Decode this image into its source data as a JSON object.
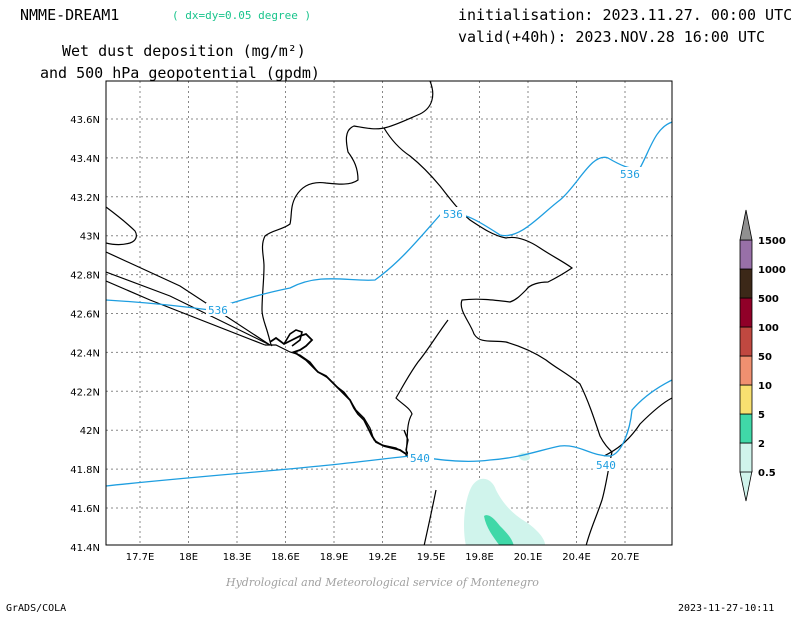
{
  "header": {
    "model": "NMME-DREAM1",
    "resolution": "( dx=dy=0.05 degree )",
    "init": "initialisation: 2023.11.27. 00:00 UTC",
    "valid": "valid(+40h): 2023.NOV.28 16:00 UTC",
    "field_line1": "Wet dust deposition (mg/m²)",
    "field_line2": "and 500 hPa geopotential (gpdm)"
  },
  "footer": {
    "credit": "Hydrological and Meteorological service of Montenegro",
    "software": "GrADS/COLA",
    "timestamp": "2023-11-27-10:11"
  },
  "map": {
    "lat_ticks": [
      "43.6N",
      "43.4N",
      "43.2N",
      "43N",
      "42.8N",
      "42.6N",
      "42.4N",
      "42.2N",
      "42N",
      "41.8N",
      "41.6N",
      "41.4N"
    ],
    "lon_ticks": [
      "17.7E",
      "18E",
      "18.3E",
      "18.6E",
      "18.9E",
      "19.2E",
      "19.5E",
      "19.8E",
      "20.1E",
      "20.4E",
      "20.7E"
    ],
    "contour_labels": [
      "536",
      "536",
      "536",
      "540",
      "540"
    ],
    "contour_color": "#1e9ee0"
  },
  "colorbar": {
    "labels": [
      "0.5",
      "2",
      "5",
      "10",
      "50",
      "100",
      "500",
      "1000",
      "1500"
    ],
    "colors": [
      "#d0f4ec",
      "#40d8a8",
      "#f8e070",
      "#f09070",
      "#c04840",
      "#900028",
      "#3c2818",
      "#9870a8",
      "#909090"
    ]
  }
}
